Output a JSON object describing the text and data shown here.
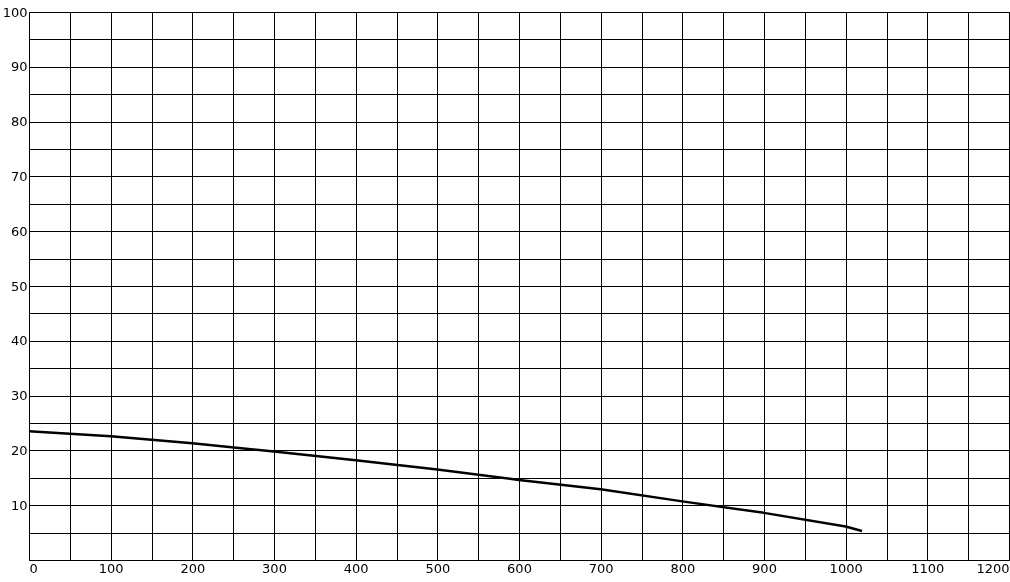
{
  "chart_data": {
    "type": "line",
    "x": [
      0,
      100,
      200,
      300,
      400,
      500,
      600,
      700,
      800,
      900,
      1000,
      1020
    ],
    "series": [
      {
        "color": "#000000",
        "values": [
          23.5,
          22.6,
          21.3,
          19.8,
          18.2,
          16.5,
          14.6,
          12.9,
          10.7,
          8.6,
          6.1,
          5.3
        ]
      }
    ],
    "xlim": [
      0,
      1200
    ],
    "xticks": [
      0,
      {
        "value": 50,
        "label": null
      },
      100,
      {
        "value": 150,
        "label": null
      },
      200,
      {
        "value": 250,
        "label": null
      },
      300,
      {
        "value": 350,
        "label": null
      },
      400,
      {
        "value": 450,
        "label": null
      },
      500,
      {
        "value": 550,
        "label": null
      },
      600,
      {
        "value": 650,
        "label": null
      },
      700,
      {
        "value": 750,
        "label": null
      },
      800,
      {
        "value": 850,
        "label": null
      },
      900,
      {
        "value": 950,
        "label": null
      },
      1000,
      {
        "value": 1050,
        "label": null
      },
      1100,
      {
        "value": 1150,
        "label": null
      },
      1200
    ],
    "ylim": [
      0,
      100
    ],
    "yticks": [
      {
        "value": 5,
        "label": null
      },
      10,
      {
        "value": 15,
        "label": null
      },
      20,
      {
        "value": 25,
        "label": null
      },
      30,
      {
        "value": 35,
        "label": null
      },
      40,
      {
        "value": 45,
        "label": null
      },
      50,
      {
        "value": 55,
        "label": null
      },
      60,
      {
        "value": 65,
        "label": null
      },
      70,
      {
        "value": 75,
        "label": null
      },
      80,
      {
        "value": 85,
        "label": null
      },
      90,
      {
        "value": 95,
        "label": null
      },
      100
    ],
    "grid": true,
    "marker": "none",
    "line_style": "solid"
  }
}
